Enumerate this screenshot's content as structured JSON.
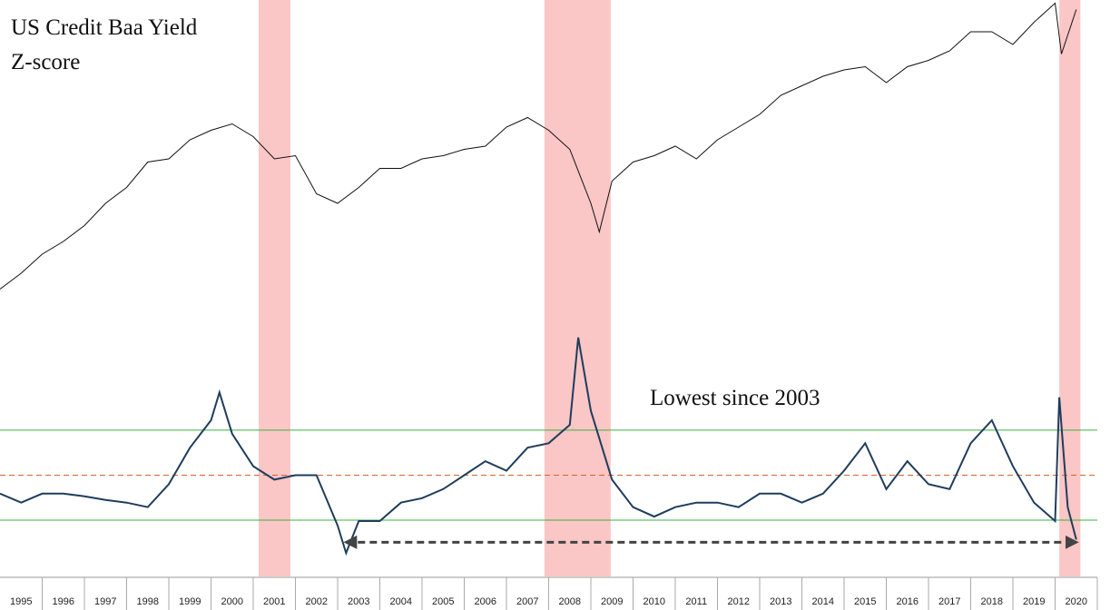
{
  "chart_data": [
    {
      "type": "line",
      "title_lines": [
        "US Credit Baa Yield",
        "Z-score"
      ],
      "xlim": [
        1995,
        2021
      ],
      "ylim": [
        0,
        100
      ],
      "x": [
        1995,
        1995.5,
        1996,
        1996.5,
        1997,
        1997.5,
        1998,
        1998.5,
        1999,
        1999.5,
        2000,
        2000.5,
        2001,
        2001.5,
        2002,
        2002.5,
        2003,
        2003.5,
        2004,
        2004.5,
        2005,
        2005.5,
        2006,
        2006.5,
        2007,
        2007.5,
        2008,
        2008.5,
        2009,
        2009.2,
        2009.5,
        2010,
        2010.5,
        2011,
        2011.5,
        2012,
        2012.5,
        2013,
        2013.5,
        2014,
        2014.5,
        2015,
        2015.5,
        2016,
        2016.5,
        2017,
        2017.5,
        2018,
        2018.5,
        2019,
        2019.5,
        2020,
        2020.15,
        2020.5
      ],
      "series": [
        {
          "color": "#111111",
          "values": [
            9,
            14,
            20,
            24,
            29,
            36,
            41,
            49,
            50,
            56,
            59,
            61,
            57,
            50,
            51,
            39,
            36,
            41,
            47,
            47,
            50,
            51,
            53,
            54,
            60,
            63,
            59,
            53,
            36,
            27,
            43,
            49,
            51,
            54,
            50,
            56,
            60,
            64,
            70,
            73,
            76,
            78,
            79,
            74,
            79,
            81,
            84,
            90,
            90,
            86,
            93,
            99,
            83,
            97
          ]
        }
      ],
      "shaded_periods": [
        [
          2001.13,
          2001.88
        ],
        [
          2007.9,
          2009.47
        ],
        [
          2020.1,
          2020.6
        ]
      ],
      "shade_color": "#f9b8b8"
    },
    {
      "type": "line",
      "annotation": "Lowest since 2003",
      "xlim": [
        1995,
        2021
      ],
      "ylim": [
        -2.25,
        3.5
      ],
      "categories": [
        "1995",
        "1996",
        "1997",
        "1998",
        "1999",
        "2000",
        "2001",
        "2002",
        "2003",
        "2004",
        "2005",
        "2006",
        "2007",
        "2008",
        "2009",
        "2010",
        "2011",
        "2012",
        "2013",
        "2014",
        "2015",
        "2016",
        "2017",
        "2018",
        "2019",
        "2020"
      ],
      "x": [
        1995,
        1995.5,
        1996,
        1996.5,
        1997,
        1997.5,
        1998,
        1998.5,
        1999,
        1999.5,
        2000,
        2000.2,
        2000.5,
        2001,
        2001.5,
        2002,
        2002.5,
        2003,
        2003.2,
        2003.5,
        2004,
        2004.5,
        2005,
        2005.5,
        2006,
        2006.5,
        2007,
        2007.5,
        2008,
        2008.5,
        2008.7,
        2009,
        2009.5,
        2010,
        2010.5,
        2011,
        2011.5,
        2012,
        2012.5,
        2013,
        2013.5,
        2014,
        2014.5,
        2015,
        2015.5,
        2016,
        2016.5,
        2017,
        2017.5,
        2018,
        2018.5,
        2019,
        2019.5,
        2020,
        2020.1,
        2020.3,
        2020.5
      ],
      "series": [
        {
          "color": "#1f3d5c",
          "values": [
            -0.41,
            -0.61,
            -0.41,
            -0.41,
            -0.47,
            -0.55,
            -0.61,
            -0.71,
            -0.2,
            0.61,
            1.22,
            1.84,
            0.92,
            0.2,
            -0.1,
            0,
            0,
            -1.12,
            -1.73,
            -1.02,
            -1.02,
            -0.61,
            -0.51,
            -0.31,
            0,
            0.31,
            0.1,
            0.61,
            0.71,
            1.12,
            3.06,
            1.43,
            -0.1,
            -0.71,
            -0.92,
            -0.71,
            -0.61,
            -0.61,
            -0.71,
            -0.41,
            -0.41,
            -0.61,
            -0.41,
            0.1,
            0.71,
            -0.31,
            0.31,
            -0.2,
            -0.31,
            0.71,
            1.22,
            0.2,
            -0.61,
            -1.02,
            1.73,
            -0.71,
            -1.43
          ]
        }
      ],
      "reference_lines": [
        {
          "value": 1,
          "color": "#3cb043",
          "dashed": false
        },
        {
          "value": 0,
          "color": "#d9642a",
          "dashed": true
        },
        {
          "value": -1,
          "color": "#3cb043",
          "dashed": false
        }
      ],
      "arrow": {
        "x": [
          2003.2,
          2020.5
        ],
        "y": -1.49,
        "color": "#444444"
      }
    }
  ]
}
